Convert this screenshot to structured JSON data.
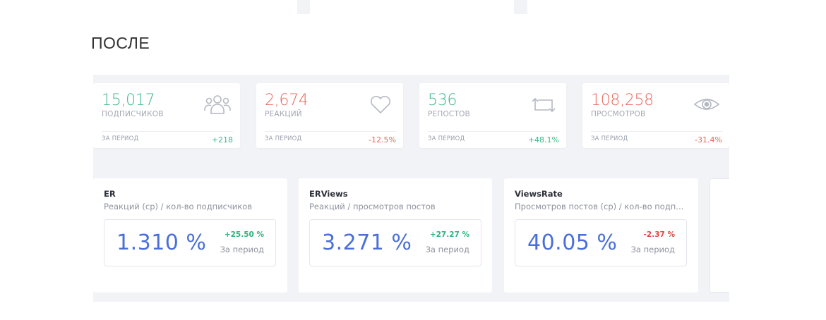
{
  "section": {
    "title": "ПОСЛЕ"
  },
  "stats": [
    {
      "value": "15,017",
      "caption": "ПОДПИСЧИКОВ",
      "period": "ЗА ПЕРИОД",
      "delta": "+218",
      "trend": "up",
      "icon": "users-icon"
    },
    {
      "value": "2,674",
      "caption": "РЕАКЦИЙ",
      "period": "ЗА ПЕРИОД",
      "delta": "-12.5%",
      "trend": "down",
      "icon": "heart-icon"
    },
    {
      "value": "536",
      "caption": "РЕПОСТОВ",
      "period": "ЗА ПЕРИОД",
      "delta": "+48.1%",
      "trend": "up",
      "icon": "repost-icon"
    },
    {
      "value": "108,258",
      "caption": "ПРОСМОТРОВ",
      "period": "ЗА ПЕРИОД",
      "delta": "-31.4%",
      "trend": "down",
      "icon": "eye-icon"
    }
  ],
  "metrics": [
    {
      "title": "ER",
      "subtitle": "Реакций (ср) / кол-во подписчиков",
      "value": "1.310 %",
      "delta": "+25.50 %",
      "trend": "up",
      "period": "За период"
    },
    {
      "title": "ERViews",
      "subtitle": "Реакций / просмотров постов",
      "value": "3.271 %",
      "delta": "+27.27 %",
      "trend": "up",
      "period": "За период"
    },
    {
      "title": "ViewsRate",
      "subtitle": "Просмотров постов (ср) / кол-во подп...",
      "value": "40.05 %",
      "delta": "-2.37 %",
      "trend": "down",
      "period": "За период"
    }
  ],
  "colors": {
    "green": "#3cb88a",
    "red": "#e8685a",
    "blue": "#4a6fd8",
    "icon": "#b5b9c2"
  }
}
